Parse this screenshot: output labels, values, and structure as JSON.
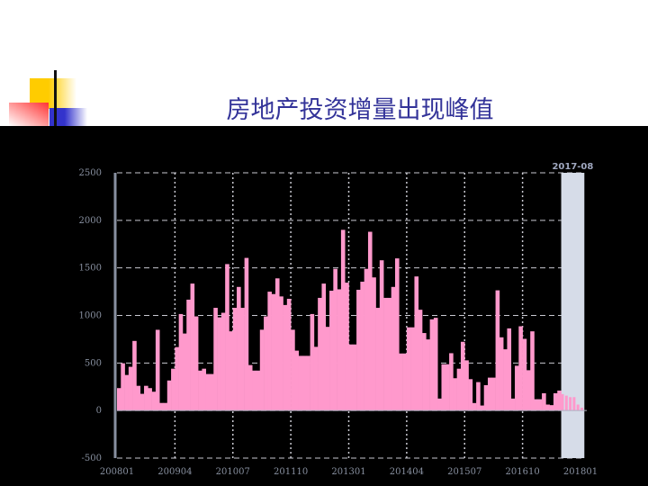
{
  "title": "房地产投资增量出现峰值",
  "colors": {
    "bar": "#ff99cc",
    "highlight": "#d6dce8",
    "title": "#333399",
    "background": "#000000",
    "axis": "#8890a0"
  },
  "chart_data": {
    "type": "bar",
    "title": "",
    "xlabel": "",
    "ylabel": "",
    "ylim": [
      -500,
      2500
    ],
    "yticks": [
      "2500",
      "2000",
      "1500",
      "1000",
      "500",
      "0",
      "-500"
    ],
    "ytick_values": [
      2500,
      2000,
      1500,
      1000,
      500,
      0,
      -500
    ],
    "xtick_labels": [
      "200801",
      "200904",
      "201007",
      "201110",
      "201301",
      "201404",
      "201507",
      "201610",
      "201801"
    ],
    "grid": true,
    "highlight": {
      "from": "201708",
      "to": "201801",
      "label": "2017-08"
    },
    "categories": [
      "200801",
      "200802",
      "200803",
      "200804",
      "200805",
      "200806",
      "200807",
      "200808",
      "200809",
      "200810",
      "200811",
      "200812",
      "200901",
      "200902",
      "200903",
      "200904",
      "200905",
      "200906",
      "200907",
      "200908",
      "200909",
      "200910",
      "200911",
      "200912",
      "201001",
      "201002",
      "201003",
      "201004",
      "201005",
      "201006",
      "201007",
      "201008",
      "201009",
      "201010",
      "201011",
      "201012",
      "201101",
      "201102",
      "201103",
      "201104",
      "201105",
      "201106",
      "201107",
      "201108",
      "201109",
      "201110",
      "201111",
      "201112",
      "201201",
      "201202",
      "201203",
      "201204",
      "201205",
      "201206",
      "201207",
      "201208",
      "201209",
      "201210",
      "201211",
      "201212",
      "201301",
      "201302",
      "201303",
      "201304",
      "201305",
      "201306",
      "201307",
      "201308",
      "201309",
      "201310",
      "201311",
      "201312",
      "201401",
      "201402",
      "201403",
      "201404",
      "201405",
      "201406",
      "201407",
      "201408",
      "201409",
      "201410",
      "201411",
      "201412",
      "201501",
      "201502",
      "201503",
      "201504",
      "201505",
      "201506",
      "201507",
      "201508",
      "201509",
      "201510",
      "201511",
      "201512",
      "201601",
      "201602",
      "201603",
      "201604",
      "201605",
      "201606",
      "201607",
      "201608",
      "201609",
      "201610",
      "201611",
      "201612",
      "201701",
      "201702",
      "201703",
      "201704",
      "201705",
      "201706",
      "201707",
      "201708",
      "201709",
      "201710",
      "201711",
      "201712",
      "201801"
    ],
    "values": [
      236,
      497,
      374,
      460,
      732,
      260,
      176,
      260,
      236,
      198,
      849,
      80,
      80,
      316,
      440,
      667,
      1015,
      810,
      1166,
      1335,
      990,
      420,
      440,
      384,
      384,
      1080,
      980,
      1028,
      1540,
      833,
      1080,
      1300,
      1080,
      1605,
      478,
      420,
      420,
      850,
      990,
      1250,
      1225,
      1390,
      1200,
      1110,
      1175,
      850,
      630,
      575,
      575,
      575,
      1015,
      670,
      1185,
      1335,
      880,
      1260,
      1490,
      1275,
      1900,
      1345,
      695,
      695,
      1270,
      1355,
      1490,
      1880,
      1400,
      1080,
      1580,
      1185,
      1185,
      1300,
      1600,
      600,
      600,
      875,
      875,
      1410,
      1060,
      815,
      748,
      959,
      975,
      126,
      487,
      487,
      603,
      340,
      440,
      723,
      528,
      330,
      79,
      299,
      53,
      267,
      346,
      346,
      1264,
      770,
      644,
      864,
      126,
      471,
      886,
      754,
      424,
      833,
      119,
      119,
      182,
      63,
      57,
      182,
      210,
      173,
      157,
      141,
      141,
      63,
      30
    ]
  }
}
